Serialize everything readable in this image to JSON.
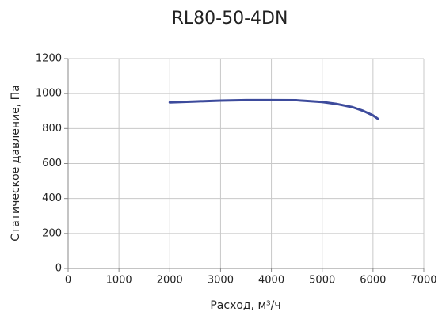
{
  "chart_data": {
    "type": "line",
    "title": "RL80-50-4DN",
    "x_label": "Расход, м³/ч",
    "y_label": "Статическое давление, Па",
    "x": [
      2000,
      2500,
      3000,
      3500,
      4000,
      4500,
      5000,
      5300,
      5600,
      5800,
      6000,
      6100
    ],
    "values": [
      950,
      955,
      960,
      963,
      963,
      962,
      952,
      940,
      922,
      902,
      875,
      855
    ],
    "color": "#3d4b9c",
    "xlim": [
      0,
      7000
    ],
    "xticks": [
      0,
      1000,
      2000,
      3000,
      4000,
      5000,
      6000,
      7000
    ],
    "ylim": [
      0,
      1200
    ],
    "yticks": [
      0,
      200,
      400,
      600,
      800,
      1000,
      1200
    ],
    "grid": true
  }
}
